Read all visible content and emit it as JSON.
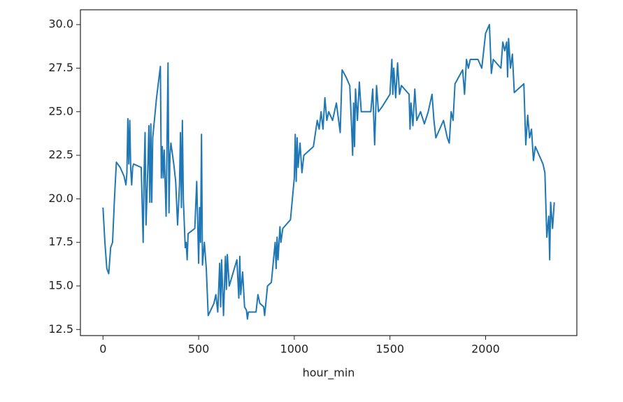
{
  "chart_data": {
    "type": "line",
    "xlabel": "hour_min",
    "color": "#1f77b4",
    "xlim": [
      -118,
      2477
    ],
    "ylim": [
      12.15,
      30.85
    ],
    "xticks": [
      0,
      500,
      1000,
      1500,
      2000
    ],
    "yticks": [
      12.5,
      {
        "value": 15,
        "label": "15.0"
      },
      17.5,
      {
        "value": 20,
        "label": "20.0"
      },
      22.5,
      {
        "value": 25,
        "label": "25.0"
      },
      27.5,
      {
        "value": 30,
        "label": "30.0"
      }
    ],
    "x": [
      0,
      10,
      20,
      30,
      40,
      50,
      60,
      70,
      90,
      110,
      120,
      125,
      130,
      135,
      140,
      145,
      150,
      155,
      160,
      200,
      210,
      215,
      220,
      225,
      235,
      240,
      245,
      250,
      255,
      260,
      280,
      300,
      305,
      310,
      315,
      320,
      330,
      340,
      345,
      350,
      355,
      370,
      380,
      390,
      400,
      405,
      410,
      415,
      420,
      430,
      435,
      440,
      445,
      480,
      490,
      500,
      505,
      510,
      515,
      520,
      530,
      540,
      550,
      580,
      590,
      600,
      610,
      615,
      620,
      630,
      640,
      645,
      650,
      660,
      700,
      710,
      715,
      720,
      730,
      740,
      750,
      755,
      760,
      800,
      810,
      820,
      840,
      845,
      860,
      880,
      900,
      905,
      910,
      915,
      925,
      930,
      940,
      980,
      1000,
      1005,
      1010,
      1015,
      1020,
      1030,
      1040,
      1050,
      1100,
      1120,
      1130,
      1140,
      1150,
      1160,
      1170,
      1180,
      1200,
      1220,
      1240,
      1250,
      1270,
      1290,
      1300,
      1305,
      1310,
      1315,
      1320,
      1330,
      1340,
      1350,
      1400,
      1410,
      1420,
      1430,
      1440,
      1460,
      1500,
      1510,
      1515,
      1520,
      1530,
      1540,
      1550,
      1560,
      1600,
      1605,
      1610,
      1620,
      1630,
      1640,
      1660,
      1680,
      1700,
      1720,
      1730,
      1740,
      1780,
      1800,
      1810,
      1820,
      1830,
      1840,
      1880,
      1890,
      1900,
      1910,
      1920,
      1960,
      1980,
      2000,
      2020,
      2030,
      2040,
      2080,
      2090,
      2100,
      2110,
      2115,
      2120,
      2130,
      2140,
      2150,
      2200,
      2210,
      2220,
      2230,
      2240,
      2250,
      2260,
      2300,
      2310,
      2320,
      2330,
      2335,
      2340,
      2350,
      2359
    ],
    "values": [
      19.5,
      17.5,
      16,
      15.7,
      17.2,
      17.5,
      20,
      22.1,
      21.8,
      21.3,
      20.8,
      21.5,
      24.6,
      22,
      24.5,
      21.7,
      20.8,
      21.8,
      22,
      21.8,
      17.5,
      21.5,
      23.8,
      18.5,
      22,
      24.2,
      19.8,
      24.3,
      19.8,
      23.5,
      25.8,
      27.6,
      21.2,
      23,
      21.2,
      22.8,
      19,
      27.8,
      19.2,
      22.5,
      23.2,
      22,
      21,
      18.5,
      20.8,
      23.8,
      19.5,
      24.5,
      20,
      17.2,
      17.5,
      16.5,
      18,
      18.3,
      21,
      16.3,
      19.5,
      17.5,
      23.7,
      16.2,
      17.5,
      16,
      13.3,
      14,
      14.5,
      13.5,
      16.3,
      13.8,
      16.5,
      13.3,
      16.7,
      14.8,
      16.8,
      15,
      16.5,
      14.3,
      16.7,
      14.5,
      15.8,
      13.8,
      13.6,
      13.1,
      13.5,
      13.5,
      14.5,
      14,
      13.8,
      13.3,
      15,
      15.2,
      17.5,
      16,
      17.8,
      16.5,
      18.4,
      17.5,
      18.3,
      18.8,
      21.2,
      23.7,
      21,
      23.5,
      21.8,
      23.2,
      21.5,
      22.5,
      23,
      24.5,
      24,
      25,
      24,
      25.8,
      24.5,
      25,
      24.5,
      25.5,
      23.8,
      27.4,
      27,
      26.5,
      24,
      22.5,
      25.5,
      23,
      26.3,
      24.5,
      26.7,
      25,
      25,
      26.3,
      23.1,
      26.5,
      25,
      25.3,
      26,
      28,
      26,
      27.5,
      25.8,
      27.8,
      26,
      26.5,
      26,
      24,
      25.5,
      24.2,
      26.3,
      24.5,
      25,
      24.3,
      25,
      26,
      24.5,
      23.5,
      24.5,
      23.5,
      23.2,
      25,
      24.5,
      26.6,
      27.4,
      26,
      28,
      27.5,
      28,
      28,
      27.5,
      29.5,
      30,
      27.2,
      28,
      27.5,
      29,
      28.5,
      29,
      27,
      29.2,
      27.5,
      28.3,
      26.1,
      26.6,
      23.1,
      24.8,
      23.5,
      24,
      22.2,
      23,
      22,
      21.5,
      17.8,
      19,
      16.5,
      19.8,
      18.3,
      19.8
    ]
  }
}
